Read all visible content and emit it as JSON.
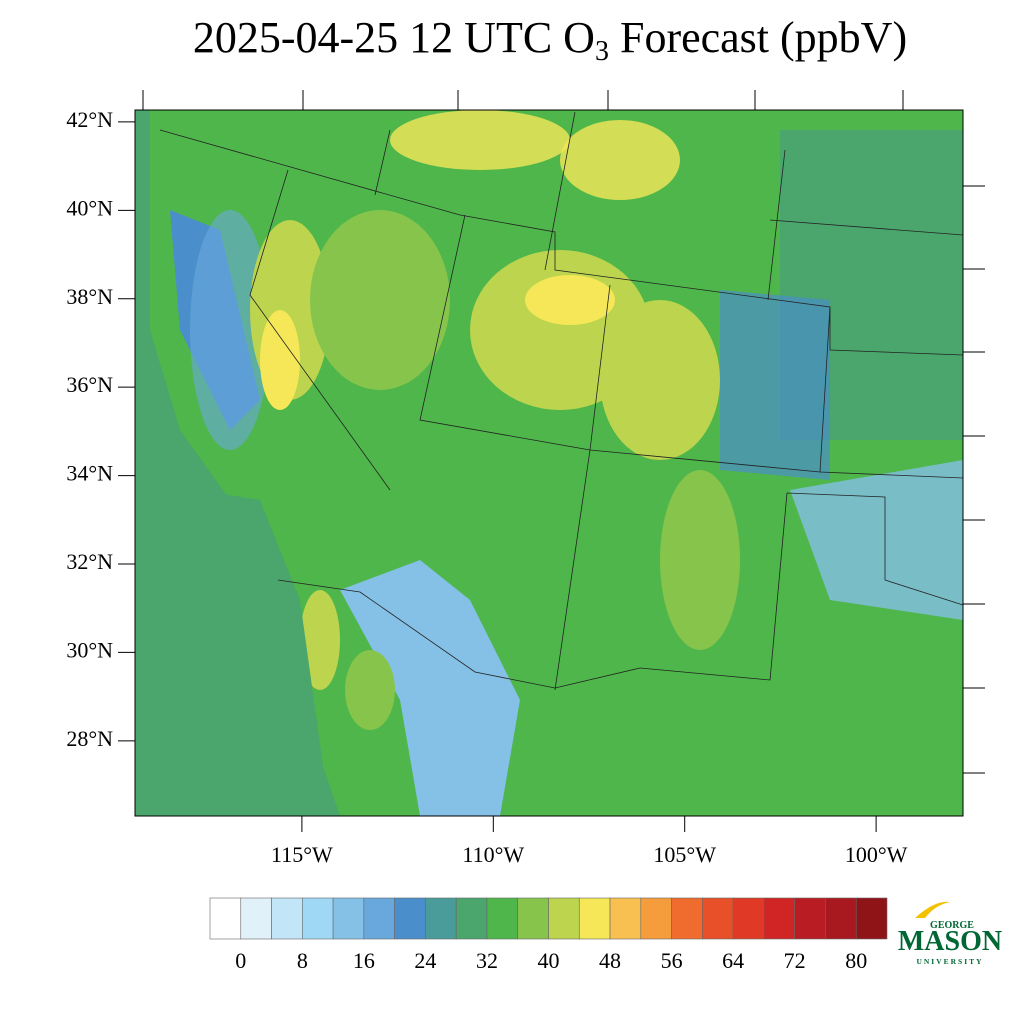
{
  "map": {
    "title": {
      "main": "2025-04-25 12 UTC O",
      "subscript": "3",
      "rest": " Forecast (ppbV)"
    },
    "lat_range": [
      26.3,
      42.27
    ],
    "lon_range": [
      -119.36,
      -97.73
    ],
    "lat_ticks": [
      {
        "value": 42,
        "label": "42°N"
      },
      {
        "value": 40,
        "label": "40°N"
      },
      {
        "value": 38,
        "label": "38°N"
      },
      {
        "value": 36,
        "label": "36°N"
      },
      {
        "value": 34,
        "label": "34°N"
      },
      {
        "value": 32,
        "label": "32°N"
      },
      {
        "value": 30,
        "label": "30°N"
      },
      {
        "value": 28,
        "label": "28°N"
      }
    ],
    "lon_ticks": [
      {
        "value": -115,
        "label": "115°W"
      },
      {
        "value": -110,
        "label": "110°W"
      },
      {
        "value": -105,
        "label": "105°W"
      },
      {
        "value": -100,
        "label": "100°W"
      }
    ],
    "colorbar": {
      "levels": [
        0,
        4,
        8,
        12,
        16,
        20,
        24,
        28,
        32,
        36,
        40,
        44,
        48,
        52,
        56,
        60,
        64,
        68,
        72,
        76,
        80
      ],
      "ticks": [
        0,
        8,
        16,
        24,
        32,
        40,
        48,
        56,
        64,
        72,
        80
      ],
      "colors": [
        "#ffffff",
        "#e1f1fa",
        "#c2e5f7",
        "#9fd8f4",
        "#85c0e6",
        "#69a8dc",
        "#4a8fcb",
        "#4a9c9a",
        "#4aa66c",
        "#4eb64a",
        "#86c44c",
        "#bcd44e",
        "#f5e757",
        "#f8c050",
        "#f59c3c",
        "#f06b2e",
        "#e8502a",
        "#e03a26",
        "#d12424",
        "#b91c22",
        "#a8181f",
        "#8f1418"
      ]
    },
    "logo": {
      "top": "GEORGE",
      "name": "MASON",
      "bottom": "UNIVERSITY"
    }
  }
}
